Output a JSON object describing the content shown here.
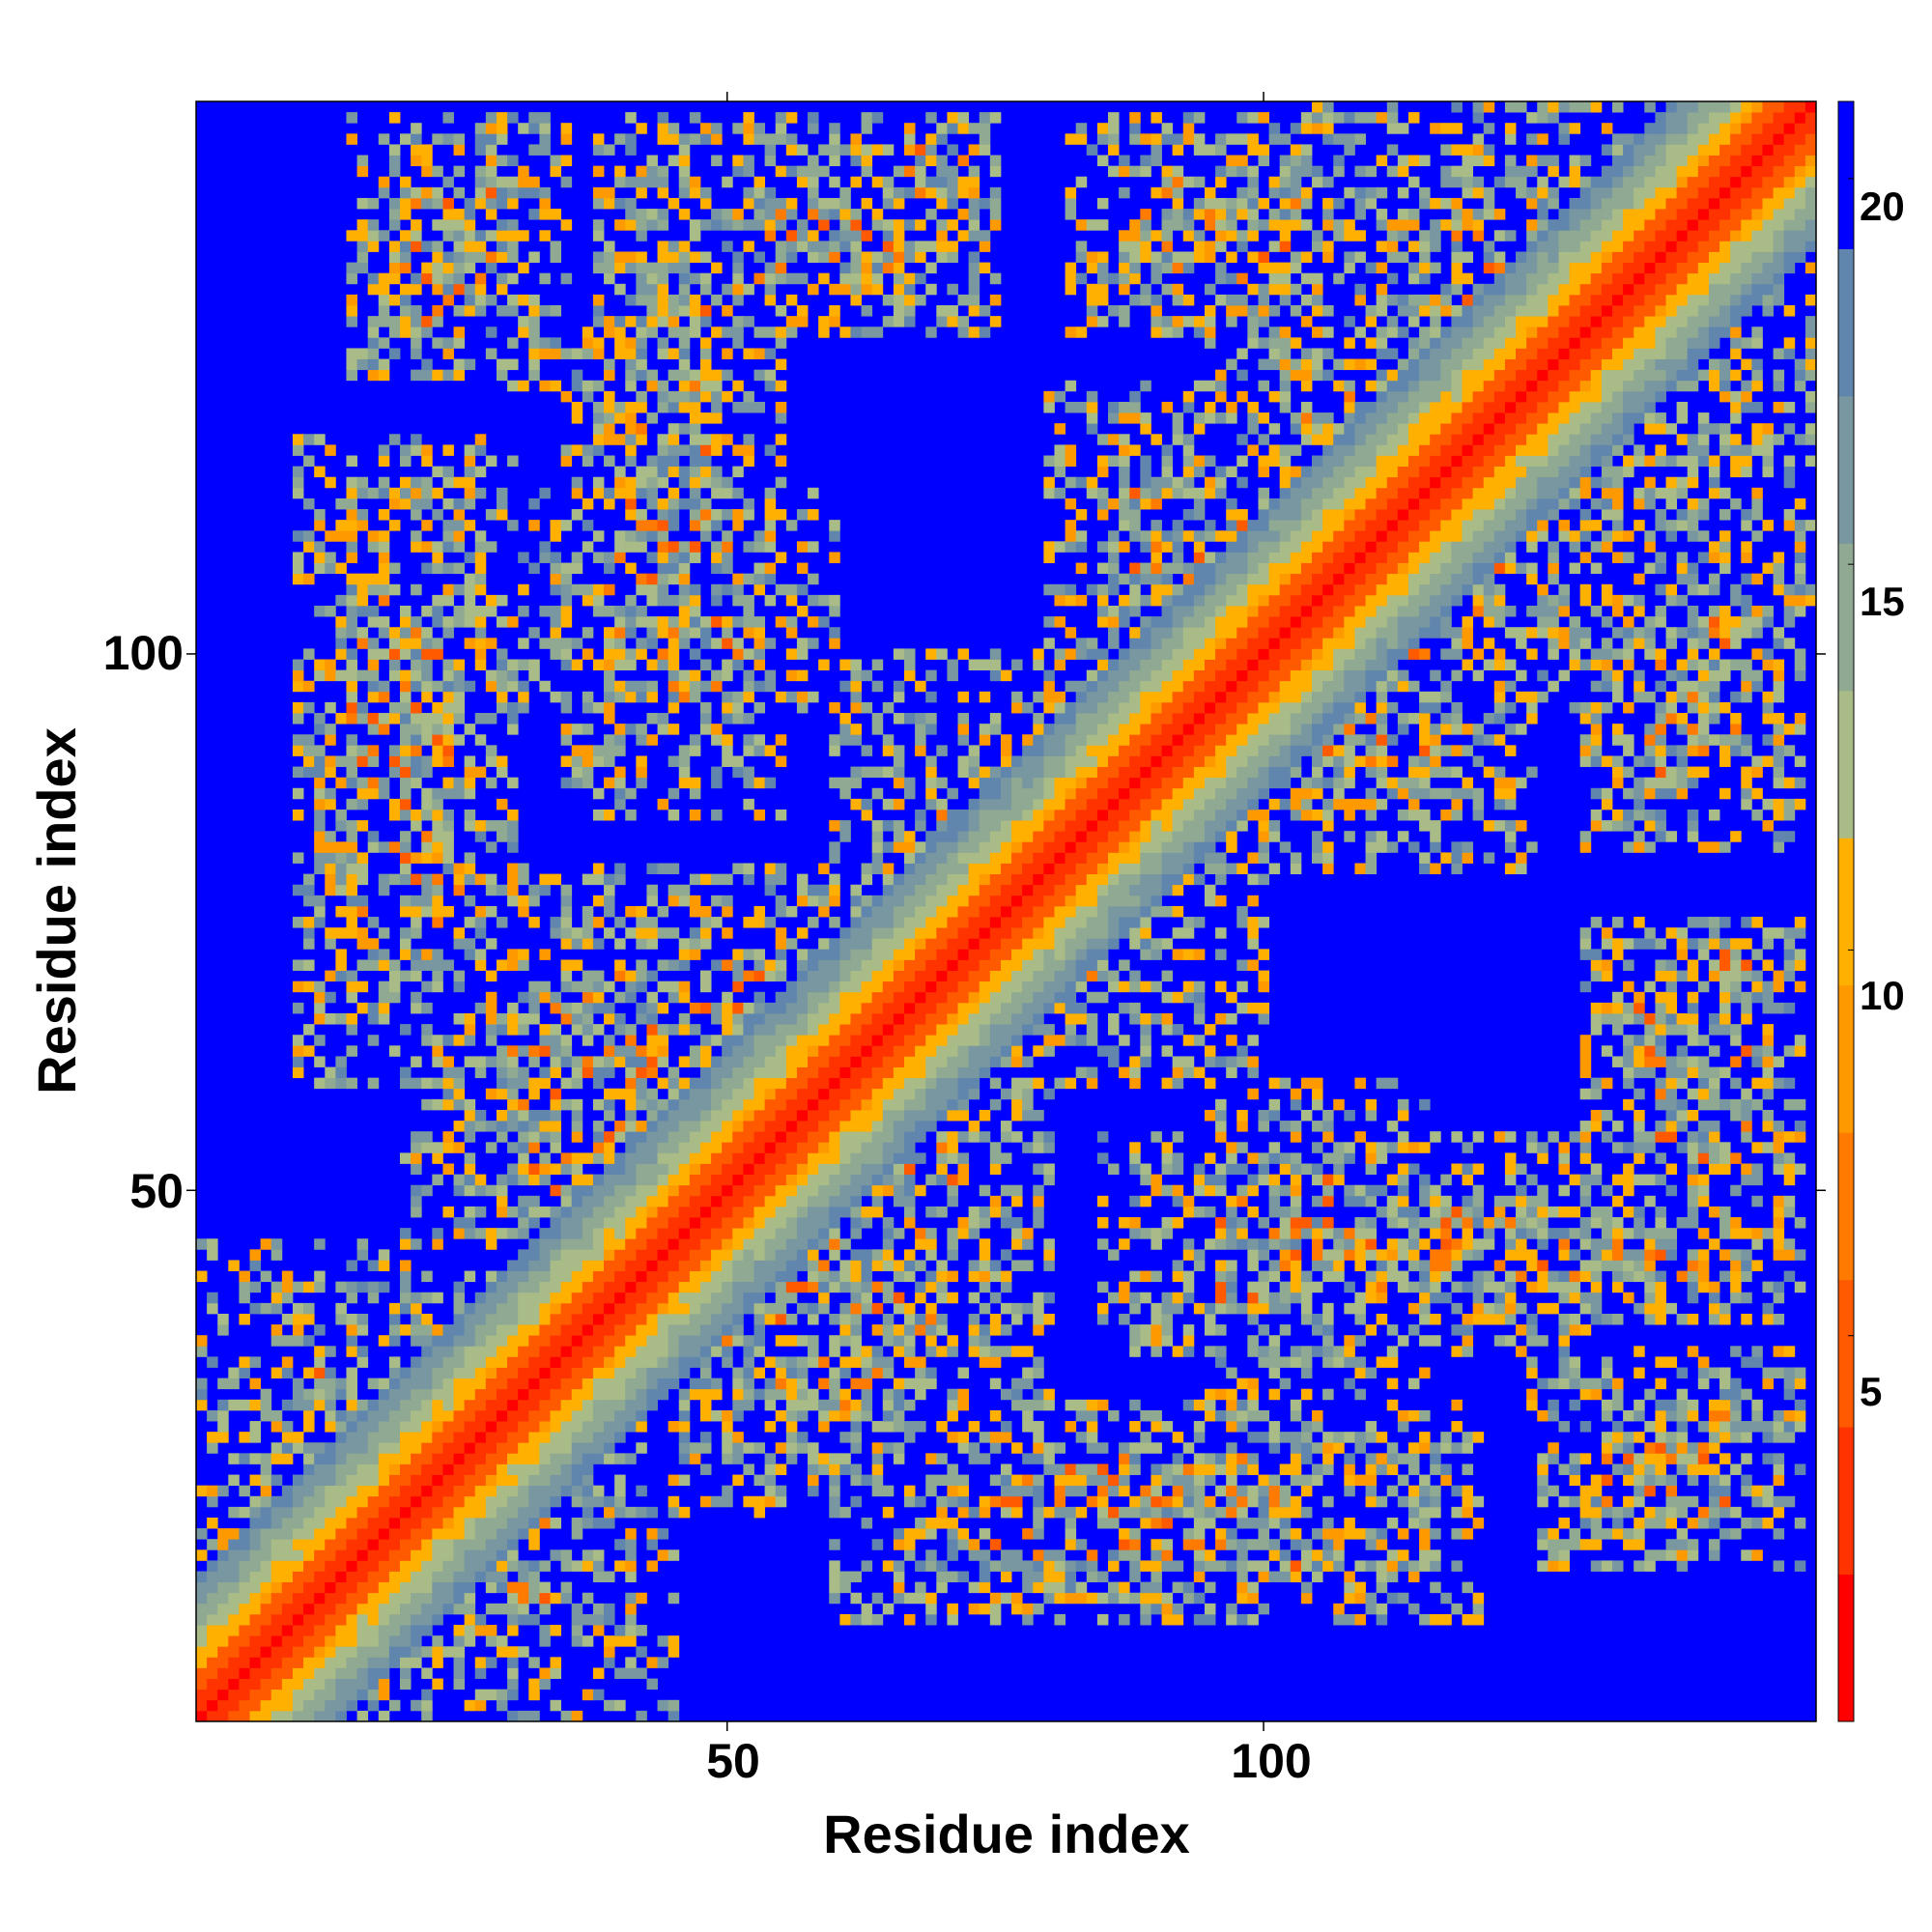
{
  "chart_data": {
    "type": "heatmap",
    "description_of_values": "Pairwise residue distance map (symmetric), color = distance",
    "n_residues": 151,
    "x": {
      "label": "Residue index",
      "range": [
        1,
        151
      ],
      "ticks": [
        50,
        100
      ]
    },
    "y": {
      "label": "Residue index",
      "range": [
        1,
        151
      ],
      "ticks": [
        50,
        100
      ]
    },
    "colorbar": {
      "range": [
        0,
        21
      ],
      "ticks": [
        5,
        10,
        15,
        20
      ],
      "colors": [
        "#ff0000",
        "#ff3300",
        "#ff5a00",
        "#ff7a00",
        "#ff9900",
        "#ffb000",
        "#a9bb86",
        "#8fa992",
        "#7897a0",
        "#6086ad",
        "#0000ff"
      ]
    },
    "structure": {
      "diagonal_band": "red to orange for |i-j| <= 4, green-grey for |i-j| up to ~13, blue (>21) elsewhere",
      "contact_blocks": [
        {
          "rows": [
            1,
            45
          ],
          "cols": [
            1,
            45
          ]
        },
        {
          "rows": [
            20,
            60
          ],
          "cols": [
            40,
            80
          ]
        },
        {
          "rows": [
            45,
            80
          ],
          "cols": [
            40,
            80
          ]
        },
        {
          "rows": [
            60,
            100
          ],
          "cols": [
            60,
            100
          ]
        },
        {
          "rows": [
            80,
            110
          ],
          "cols": [
            85,
            125
          ]
        },
        {
          "rows": [
            95,
            130
          ],
          "cols": [
            95,
            135
          ]
        },
        {
          "rows": [
            105,
            151
          ],
          "cols": [
            105,
            151
          ]
        },
        {
          "rows": [
            30,
            60
          ],
          "cols": [
            95,
            115
          ]
        },
        {
          "rows": [
            60,
            120
          ],
          "cols": [
            10,
            30
          ]
        },
        {
          "rows": [
            85,
            130
          ],
          "cols": [
            35,
            55
          ]
        },
        {
          "rows": [
            110,
            150
          ],
          "cols": [
            38,
            52
          ]
        },
        {
          "rows": [
            140,
            150
          ],
          "cols": [
            65,
            75
          ]
        },
        {
          "rows": [
            130,
            150
          ],
          "cols": [
            82,
            110
          ]
        },
        {
          "rows": [
            15,
            35
          ],
          "cols": [
            125,
            150
          ]
        },
        {
          "rows": [
            45,
            75
          ],
          "cols": [
            130,
            150
          ]
        }
      ]
    }
  },
  "labels": {
    "xlabel": "Residue index",
    "ylabel": "Residue index",
    "x_tick_50": "50",
    "x_tick_100": "100",
    "y_tick_50": "50",
    "y_tick_100": "100",
    "cb_tick_5": "5",
    "cb_tick_10": "10",
    "cb_tick_15": "15",
    "cb_tick_20": "20"
  }
}
